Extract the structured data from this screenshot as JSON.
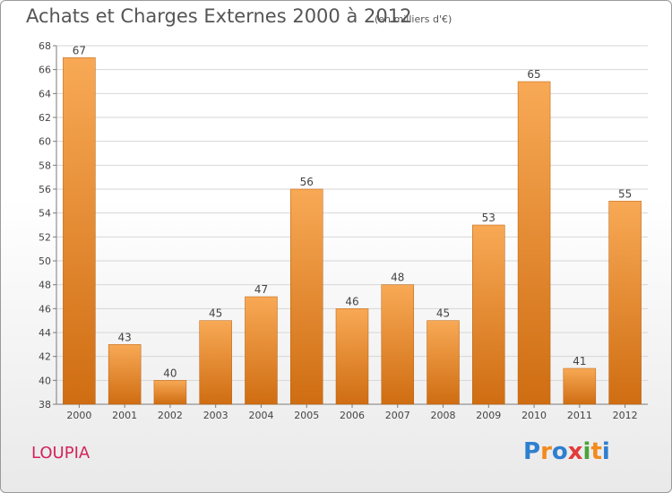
{
  "header": {
    "title": "Achats et Charges Externes 2000 à 2012",
    "unit": "(en milliers d'€)"
  },
  "footer": {
    "commune": "LOUPIA",
    "brand_letters": [
      "P",
      "r",
      "o",
      "x",
      "i",
      "t",
      "i"
    ],
    "brand_colors": [
      "#2e7fd0",
      "#f28a1d",
      "#2e7fd0",
      "#e23b3b",
      "#4aa33a",
      "#f28a1d",
      "#2e7fd0"
    ]
  },
  "colors": {
    "bar_light": "#f8a955",
    "bar_dark": "#cf6d12",
    "axis": "#7a7a7a",
    "grid": "#d6d6d6",
    "text": "#444444"
  },
  "chart_data": {
    "type": "bar",
    "categories": [
      "2000",
      "2001",
      "2002",
      "2003",
      "2004",
      "2005",
      "2006",
      "2007",
      "2008",
      "2009",
      "2010",
      "2011",
      "2012"
    ],
    "values": [
      67,
      43,
      40,
      45,
      47,
      56,
      46,
      48,
      45,
      53,
      65,
      41,
      55
    ],
    "ylim": [
      38,
      68
    ],
    "yticks": [
      38,
      40,
      42,
      44,
      46,
      48,
      50,
      52,
      54,
      56,
      58,
      60,
      62,
      64,
      66,
      68
    ],
    "grid": true,
    "xlabel": "",
    "ylabel": ""
  }
}
